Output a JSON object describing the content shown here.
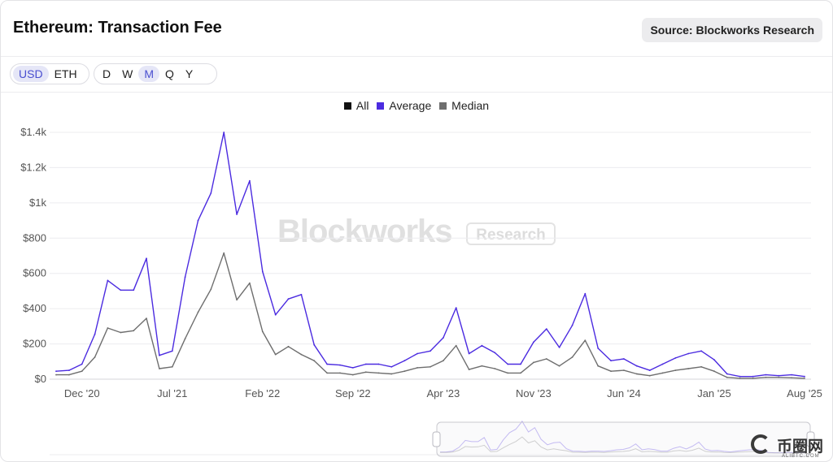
{
  "header": {
    "title": "Ethereum: Transaction Fee",
    "source_label": "Source: Blockworks Research"
  },
  "toolbar": {
    "currency_options": [
      "USD",
      "ETH"
    ],
    "currency_selected": "USD",
    "period_options": [
      "D",
      "W",
      "M",
      "Q",
      "Y"
    ],
    "period_selected": "M"
  },
  "watermark": {
    "brand": "Blockworks",
    "badge": "Research"
  },
  "logo": {
    "text": "币圈网",
    "subtext": "ALIBTC.COM"
  },
  "colors": {
    "all": "#111111",
    "average": "#4b2be0",
    "median": "#6e6e6e",
    "selected_option": "#4a4fd0"
  },
  "chart_data": {
    "type": "line",
    "title": "",
    "xlabel": "",
    "ylabel": "",
    "legend": [
      {
        "name": "All",
        "color": "#111111"
      },
      {
        "name": "Average",
        "color": "#4b2be0"
      },
      {
        "name": "Median",
        "color": "#6e6e6e"
      }
    ],
    "legend_position": "top-center",
    "grid": true,
    "ylim": [
      0,
      1400
    ],
    "y_ticks": [
      {
        "value": 0,
        "label": "$0"
      },
      {
        "value": 200,
        "label": "$200"
      },
      {
        "value": 400,
        "label": "$400"
      },
      {
        "value": 600,
        "label": "$600"
      },
      {
        "value": 800,
        "label": "$800"
      },
      {
        "value": 1000,
        "label": "$1k"
      },
      {
        "value": 1200,
        "label": "$1.2k"
      },
      {
        "value": 1400,
        "label": "$1.4k"
      }
    ],
    "x_ticks": [
      {
        "index": 2,
        "label": "Dec '20"
      },
      {
        "index": 9,
        "label": "Jul '21"
      },
      {
        "index": 16,
        "label": "Feb '22"
      },
      {
        "index": 23,
        "label": "Sep '22"
      },
      {
        "index": 30,
        "label": "Apr '23"
      },
      {
        "index": 37,
        "label": "Nov '23"
      },
      {
        "index": 44,
        "label": "Jun '24"
      },
      {
        "index": 51,
        "label": "Jan '25"
      },
      {
        "index": 58,
        "label": "Aug '25"
      }
    ],
    "x": [
      "Oct '20",
      "Nov '20",
      "Dec '20",
      "Jan '21",
      "Feb '21",
      "Mar '21",
      "Apr '21",
      "May '21",
      "Jun '21",
      "Jul '21",
      "Aug '21",
      "Sep '21",
      "Oct '21",
      "Nov '21",
      "Dec '21",
      "Jan '22",
      "Feb '22",
      "Mar '22",
      "Apr '22",
      "May '22",
      "Jun '22",
      "Jul '22",
      "Aug '22",
      "Sep '22",
      "Oct '22",
      "Nov '22",
      "Dec '22",
      "Jan '23",
      "Feb '23",
      "Mar '23",
      "Apr '23",
      "May '23",
      "Jun '23",
      "Jul '23",
      "Aug '23",
      "Sep '23",
      "Oct '23",
      "Nov '23",
      "Dec '23",
      "Jan '24",
      "Feb '24",
      "Mar '24",
      "Apr '24",
      "May '24",
      "Jun '24",
      "Jul '24",
      "Aug '24",
      "Sep '24",
      "Oct '24",
      "Nov '24",
      "Dec '24",
      "Jan '25",
      "Feb '25",
      "Mar '25",
      "Apr '25",
      "May '25",
      "Jun '25",
      "Jul '25",
      "Aug '25"
    ],
    "series": [
      {
        "name": "Average",
        "color": "#4b2be0",
        "values": [
          45,
          50,
          85,
          255,
          560,
          505,
          505,
          685,
          135,
          160,
          580,
          900,
          1055,
          1400,
          935,
          1125,
          610,
          365,
          455,
          480,
          195,
          85,
          80,
          65,
          85,
          85,
          70,
          105,
          145,
          160,
          235,
          405,
          145,
          190,
          150,
          85,
          85,
          210,
          285,
          180,
          305,
          485,
          175,
          105,
          115,
          75,
          50,
          85,
          120,
          145,
          160,
          110,
          30,
          15,
          15,
          25,
          20,
          25,
          15
        ]
      },
      {
        "name": "Median",
        "color": "#6e6e6e",
        "values": [
          25,
          25,
          45,
          125,
          290,
          265,
          275,
          345,
          60,
          70,
          230,
          380,
          510,
          715,
          450,
          545,
          270,
          140,
          185,
          140,
          105,
          35,
          35,
          25,
          40,
          35,
          30,
          45,
          65,
          70,
          105,
          190,
          55,
          75,
          60,
          35,
          35,
          95,
          115,
          75,
          125,
          220,
          75,
          45,
          50,
          30,
          20,
          35,
          50,
          60,
          70,
          45,
          10,
          5,
          5,
          10,
          10,
          8,
          5
        ]
      }
    ]
  }
}
